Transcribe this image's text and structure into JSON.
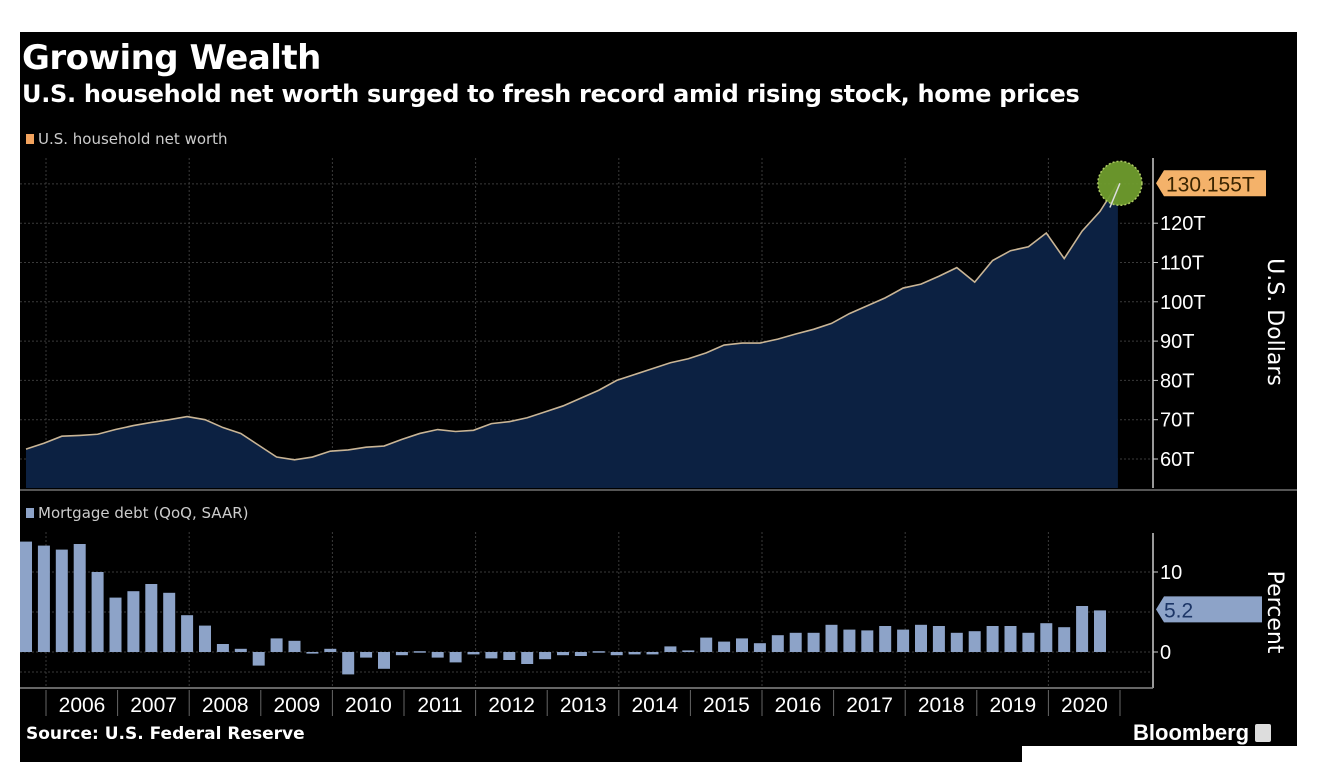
{
  "header": {
    "title": "Growing Wealth",
    "subtitle": "U.S. household net worth surged to fresh record amid rising stock, home prices"
  },
  "footer": {
    "source": "Source: U.S. Federal Reserve",
    "brand": "Bloomberg"
  },
  "colors": {
    "line": "#c9b596",
    "area": "#0c2142",
    "bars": "#8da3c8",
    "legend_top": "#f2a35e",
    "marker": "#6f9c2e",
    "callout_top": "#f4b26a"
  },
  "chart_data": [
    {
      "type": "area",
      "legend": "U.S. household net worth",
      "ylabel": "U.S. Dollars",
      "yticks": [
        "60T",
        "70T",
        "80T",
        "90T",
        "100T",
        "110T",
        "120T"
      ],
      "ytick_values": [
        60,
        70,
        80,
        90,
        100,
        110,
        120
      ],
      "ylim": [
        53,
        137
      ],
      "x_start": "2005Q3",
      "frequency": "quarterly",
      "callout": "130.155T",
      "callout_value": 130.155,
      "values": [
        62.5,
        64,
        65.8,
        66,
        66.3,
        67.5,
        68.5,
        69.3,
        70,
        70.8,
        70,
        68,
        66.5,
        63.5,
        60.5,
        59.8,
        60.5,
        62,
        62.3,
        63,
        63.3,
        65,
        66.5,
        67.5,
        67,
        67.3,
        69,
        69.5,
        70.5,
        72,
        73.5,
        75.5,
        77.5,
        80,
        81.5,
        83,
        84.5,
        85.5,
        87,
        89,
        89.5,
        89.5,
        90.5,
        91.8,
        93,
        94.5,
        97,
        99,
        101,
        103.5,
        104.5,
        106.5,
        108.7,
        105,
        110.5,
        113,
        114,
        117.5,
        111,
        118,
        123,
        130.155
      ]
    },
    {
      "type": "bar",
      "legend": "Mortgage debt (QoQ, SAAR)",
      "ylabel": "Percent",
      "yticks": [
        "0",
        "10"
      ],
      "ytick_values": [
        0,
        10
      ],
      "ylim": [
        -4.5,
        14.5
      ],
      "x_start": "2005Q3",
      "frequency": "quarterly",
      "callout": "5.2",
      "callout_value": 5.2,
      "values": [
        13.8,
        13.3,
        12.8,
        13.5,
        10.0,
        6.8,
        7.6,
        8.5,
        7.4,
        4.6,
        3.3,
        1.0,
        0.4,
        -1.7,
        1.7,
        1.4,
        -0.2,
        0.4,
        -2.8,
        -0.7,
        -2.1,
        -0.4,
        0.1,
        -0.7,
        -1.3,
        -0.3,
        -0.8,
        -1.0,
        -1.5,
        -0.9,
        -0.4,
        -0.5,
        0.1,
        -0.4,
        -0.3,
        -0.3,
        0.7,
        0.2,
        1.8,
        1.3,
        1.7,
        1.1,
        2.1,
        2.4,
        2.4,
        3.4,
        2.8,
        2.7,
        3.25,
        2.8,
        3.4,
        3.25,
        2.4,
        2.6,
        3.25,
        3.25,
        2.4,
        3.6,
        3.1,
        5.75,
        5.2
      ]
    }
  ],
  "x_axis": {
    "labels": [
      "2006",
      "2007",
      "2008",
      "2009",
      "2010",
      "2011",
      "2012",
      "2013",
      "2014",
      "2015",
      "2016",
      "2017",
      "2018",
      "2019",
      "2020"
    ]
  }
}
